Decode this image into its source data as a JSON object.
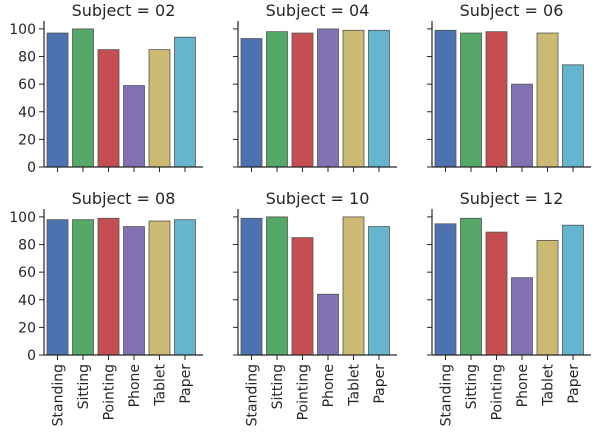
{
  "chart_data": {
    "type": "bar",
    "layout": "facet-grid",
    "categories": [
      "Standing",
      "Sitting",
      "Pointing",
      "Phone",
      "Tablet",
      "Paper"
    ],
    "colors": [
      "#4c72b0",
      "#55a868",
      "#c44e52",
      "#8172b2",
      "#ccb974",
      "#64b5cd"
    ],
    "ylim": [
      0,
      105
    ],
    "yticks": [
      0,
      20,
      40,
      60,
      80,
      100
    ],
    "sharey": true,
    "grid": false,
    "panels": [
      {
        "title": "Subject = 02",
        "values": [
          97,
          100,
          85,
          59,
          85,
          94
        ]
      },
      {
        "title": "Subject = 04",
        "values": [
          93,
          98,
          97,
          100,
          99,
          99
        ]
      },
      {
        "title": "Subject = 06",
        "values": [
          99,
          97,
          98,
          60,
          97,
          74
        ]
      },
      {
        "title": "Subject = 08",
        "values": [
          98,
          98,
          99,
          93,
          97,
          98
        ]
      },
      {
        "title": "Subject = 10",
        "values": [
          99,
          100,
          85,
          44,
          100,
          93
        ]
      },
      {
        "title": "Subject = 12",
        "values": [
          95,
          99,
          89,
          56,
          83,
          94
        ]
      }
    ]
  }
}
